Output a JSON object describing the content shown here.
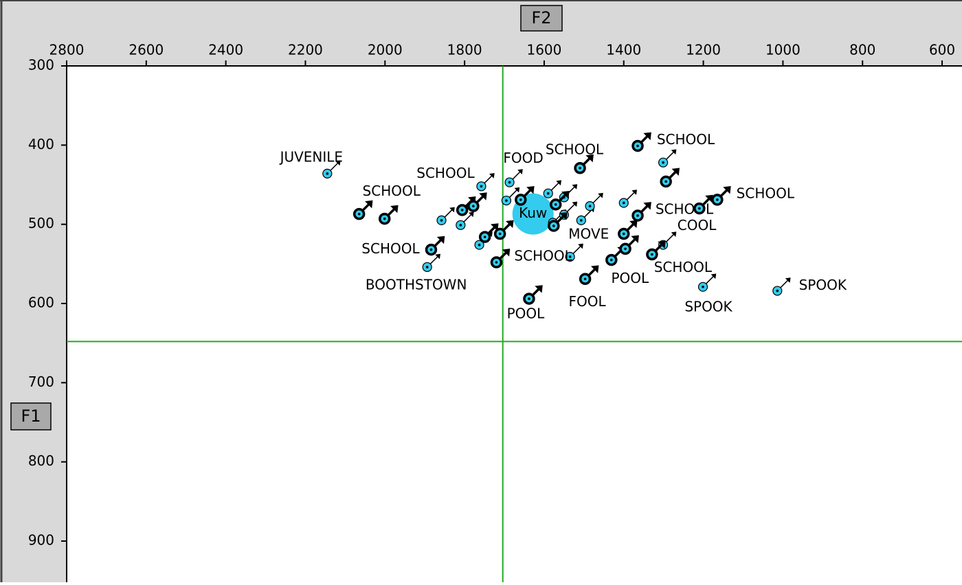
{
  "chart_data": {
    "type": "scatter",
    "x_label": "F2",
    "y_label": "F1",
    "xlim": [
      2800,
      550
    ],
    "ylim": [
      300,
      952
    ],
    "xticks": [
      2800,
      2600,
      2400,
      2200,
      2000,
      1800,
      1600,
      1400,
      1200,
      1000,
      800,
      600
    ],
    "yticks": [
      300,
      400,
      500,
      600,
      700,
      800,
      900
    ],
    "cursor": {
      "x": 1704,
      "y": 648,
      "color": "#22aa22"
    },
    "groups": [
      {
        "marker": "thin",
        "color": "#33ccee",
        "x": [
          2145,
          1894,
          1858,
          1810,
          1758,
          1687,
          1695,
          1590,
          1550,
          1507,
          1485,
          1400,
          1535,
          1301,
          1301,
          1201,
          1014,
          1578,
          1763,
          1550
        ],
        "y": [
          436,
          554,
          495,
          501,
          452,
          447,
          470,
          461,
          466,
          495,
          477,
          473,
          541,
          422,
          526,
          579,
          584,
          498,
          526,
          488
        ],
        "labels": [
          "JUVENILE",
          "BOOTHSTOWN",
          null,
          null,
          "SCHOOL",
          "FOOD",
          null,
          null,
          null,
          "MOVE",
          null,
          null,
          "SCHOOL",
          null,
          "COOL",
          "SPOOK",
          "SPOOK",
          null,
          null,
          null
        ]
      },
      {
        "marker": "thick",
        "color": "#33ccee",
        "x": [
          2065,
          2001,
          1884,
          1806,
          1778,
          1749,
          1711,
          1720,
          1659,
          1638,
          1571,
          1510,
          1497,
          1431,
          1400,
          1396,
          1365,
          1365,
          1294,
          1329,
          1210,
          1165,
          1576
        ],
        "y": [
          487,
          493,
          532,
          482,
          477,
          516,
          512,
          548,
          469,
          594,
          475,
          429,
          569,
          545,
          512,
          531,
          489,
          401,
          446,
          538,
          480,
          469,
          502
        ],
        "labels": [
          null,
          "SCHOOL",
          "SCHOOL",
          null,
          null,
          null,
          null,
          null,
          null,
          "POOL",
          null,
          "SCHOOL",
          "FOOL",
          "POOL",
          null,
          null,
          "SCHOOL",
          "SCHOOL",
          null,
          "SCHOOL",
          null,
          "SCHOOL",
          null
        ]
      }
    ],
    "centroid": {
      "label": "Kuw",
      "x": 1628,
      "y": 487,
      "color": "#33ccee"
    }
  }
}
